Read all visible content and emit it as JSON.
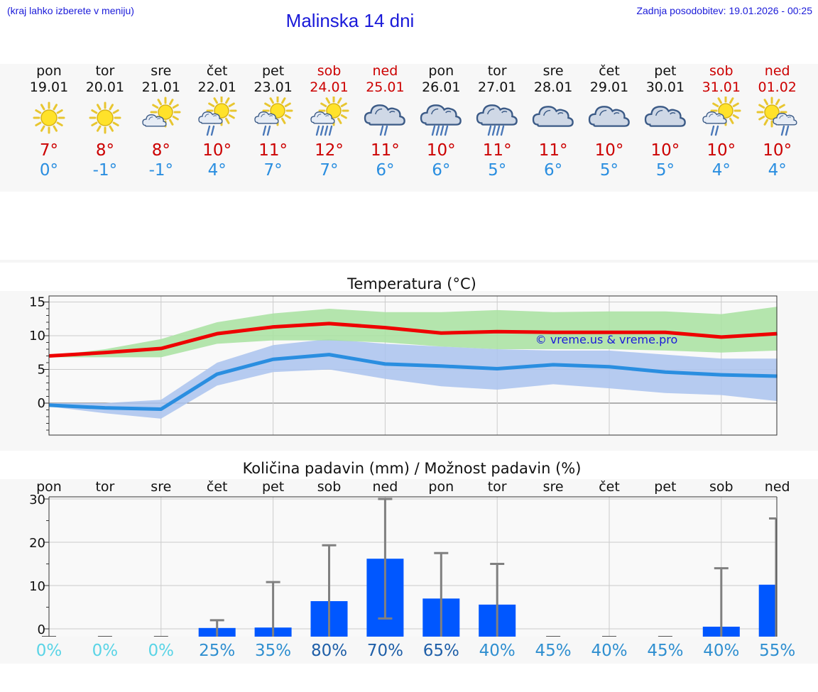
{
  "header": {
    "menu_hint": "(kraj lahko izberete v meniju)",
    "title": "Malinska 14 dni",
    "updated": "Zadnja posodobitev: 19.01.2026 - 00:25"
  },
  "colors": {
    "max_temp": "#ee0000",
    "min_temp": "#2a8ee0",
    "max_band": "#a8e2a0",
    "min_band": "#aac3ef",
    "bar": "#0057ff",
    "error_bar": "#808080"
  },
  "days": [
    {
      "name": "pon",
      "date": "19.01",
      "weekend": false,
      "icon": "sun-icon",
      "max": "7°",
      "min": "0°"
    },
    {
      "name": "tor",
      "date": "20.01",
      "weekend": false,
      "icon": "sun-icon",
      "max": "8°",
      "min": "-1°"
    },
    {
      "name": "sre",
      "date": "21.01",
      "weekend": false,
      "icon": "partly-cloudy-icon",
      "max": "8°",
      "min": "-1°"
    },
    {
      "name": "čet",
      "date": "22.01",
      "weekend": false,
      "icon": "partly-cloudy-rain-icon",
      "max": "10°",
      "min": "4°"
    },
    {
      "name": "pet",
      "date": "23.01",
      "weekend": false,
      "icon": "partly-cloudy-rain-icon",
      "max": "11°",
      "min": "7°"
    },
    {
      "name": "sob",
      "date": "24.01",
      "weekend": true,
      "icon": "partly-cloudy-heavy-rain-icon",
      "max": "12°",
      "min": "7°"
    },
    {
      "name": "ned",
      "date": "25.01",
      "weekend": true,
      "icon": "cloudy-rain-icon",
      "max": "11°",
      "min": "6°"
    },
    {
      "name": "pon",
      "date": "26.01",
      "weekend": false,
      "icon": "cloudy-heavy-rain-icon",
      "max": "10°",
      "min": "6°"
    },
    {
      "name": "tor",
      "date": "27.01",
      "weekend": false,
      "icon": "cloudy-heavy-rain-icon",
      "max": "11°",
      "min": "5°"
    },
    {
      "name": "sre",
      "date": "28.01",
      "weekend": false,
      "icon": "cloudy-icon",
      "max": "11°",
      "min": "6°"
    },
    {
      "name": "čet",
      "date": "29.01",
      "weekend": false,
      "icon": "cloudy-icon",
      "max": "10°",
      "min": "5°"
    },
    {
      "name": "pet",
      "date": "30.01",
      "weekend": false,
      "icon": "cloudy-icon",
      "max": "10°",
      "min": "5°"
    },
    {
      "name": "sob",
      "date": "31.01",
      "weekend": true,
      "icon": "partly-cloudy-rain-icon",
      "max": "10°",
      "min": "4°"
    },
    {
      "name": "ned",
      "date": "01.02",
      "weekend": true,
      "icon": "sun-cloud-rain-icon",
      "max": "10°",
      "min": "4°"
    }
  ],
  "chart_data": [
    {
      "type": "line",
      "title": "Temperatura (°C)",
      "watermark": "© vreme.us & vreme.pro",
      "ylim": [
        -5,
        16
      ],
      "yticks": [
        0,
        5,
        10,
        15
      ],
      "grid": true,
      "series": [
        {
          "name": "max",
          "values": [
            7.0,
            7.5,
            8.1,
            10.3,
            11.3,
            11.8,
            11.2,
            10.4,
            10.6,
            10.5,
            10.5,
            10.5,
            9.8,
            10.3
          ],
          "band_low": [
            6.8,
            6.8,
            6.8,
            8.8,
            9.3,
            9.3,
            9.0,
            8.4,
            8.0,
            8.0,
            8.0,
            7.8,
            7.5,
            7.8
          ],
          "band_high": [
            7.0,
            8.0,
            9.5,
            12.0,
            13.3,
            14.0,
            13.5,
            13.5,
            13.8,
            13.5,
            13.6,
            13.6,
            13.2,
            14.3
          ]
        },
        {
          "name": "min",
          "values": [
            -0.3,
            -0.7,
            -0.9,
            4.3,
            6.5,
            7.2,
            5.8,
            5.5,
            5.1,
            5.7,
            5.4,
            4.6,
            4.2,
            4.0
          ],
          "band_low": [
            -0.5,
            -1.5,
            -2.3,
            2.6,
            4.6,
            5.0,
            3.6,
            2.5,
            2.0,
            2.8,
            2.2,
            1.5,
            1.2,
            0.3
          ],
          "band_high": [
            0.0,
            0.0,
            0.5,
            6.0,
            8.6,
            9.5,
            8.8,
            8.4,
            8.0,
            7.8,
            7.8,
            7.2,
            6.6,
            6.6
          ]
        }
      ]
    },
    {
      "type": "bar",
      "title": "Količina padavin (mm) / Možnost padavin (%)",
      "ylim": [
        -2,
        32
      ],
      "yticks": [
        0,
        10,
        20,
        30
      ],
      "grid": true,
      "categories": [
        "pon",
        "tor",
        "sre",
        "čet",
        "pet",
        "sob",
        "ned",
        "pon",
        "tor",
        "sre",
        "čet",
        "pet",
        "sob",
        "ned"
      ],
      "values": [
        0,
        0,
        0,
        0.2,
        0.3,
        6.4,
        16.2,
        7.0,
        5.6,
        0,
        0,
        0,
        0.5,
        10.2
      ],
      "err_low": [
        0,
        0,
        0,
        0,
        0,
        0,
        2.4,
        0,
        0,
        0,
        0,
        0,
        0,
        0
      ],
      "err_high": [
        0,
        0,
        0,
        2.0,
        10.8,
        19.3,
        30.0,
        17.5,
        15.0,
        0,
        0,
        0,
        14.0,
        25.5
      ],
      "probability": [
        "0%",
        "0%",
        "0%",
        "25%",
        "35%",
        "80%",
        "70%",
        "65%",
        "40%",
        "45%",
        "40%",
        "45%",
        "40%",
        "55%"
      ]
    }
  ]
}
